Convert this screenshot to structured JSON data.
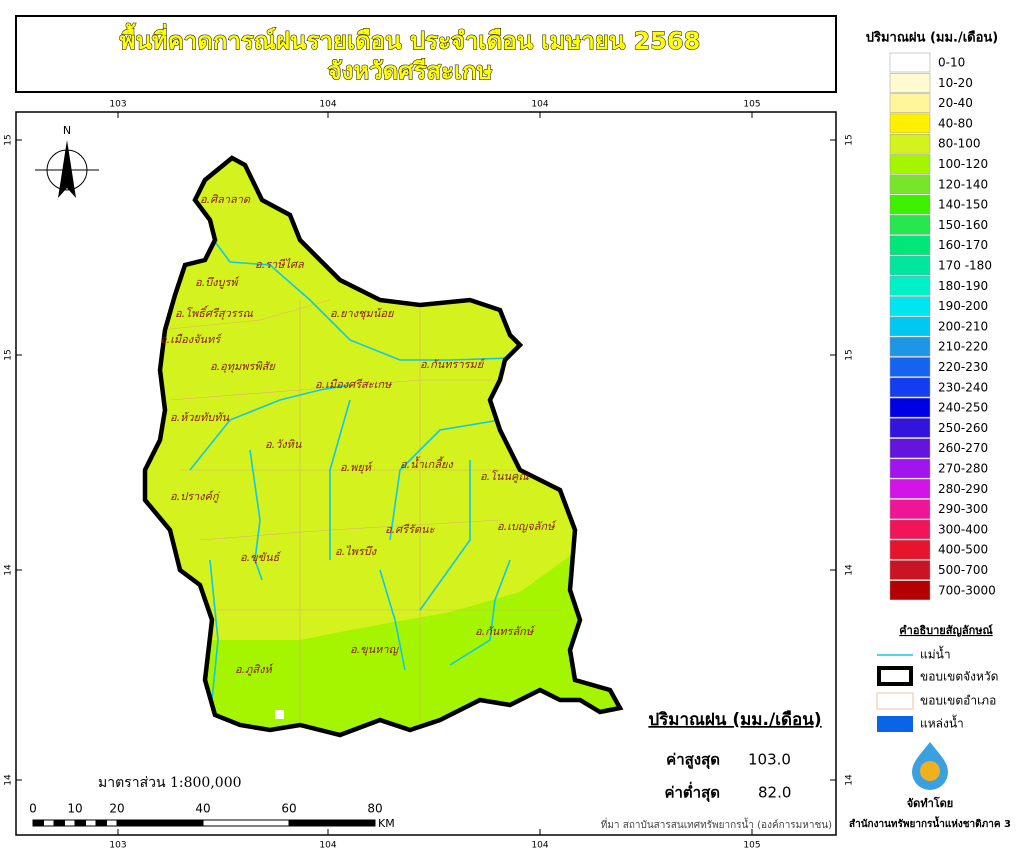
{
  "title": {
    "line1": "พื้นที่คาดการณ์ฝนรายเดือน ประจำเดือน เมษายน 2568",
    "line2": "จังหวัดศรีสะเกษ"
  },
  "coordinates": {
    "top": [
      "103",
      "104",
      "104",
      "105"
    ],
    "bottom": [
      "103",
      "104",
      "104",
      "105"
    ],
    "left": [
      "15",
      "15",
      "14",
      "14"
    ],
    "right": [
      "15",
      "15",
      "14",
      "14"
    ]
  },
  "north": "N",
  "districts": [
    "อ.ศิลาลาด",
    "อ.ราษีไศล",
    "อ.บึงบูรพ์",
    "อ.โพธิ์ศรีสุวรรณ",
    "อ.ยางชุมน้อย",
    "อ.เมืองจันทร์",
    "อ.กันทรารมย์",
    "อ.อุทุมพรพิสัย",
    "อ.เมืองศรีสะเกษ",
    "อ.ห้วยทับทัน",
    "อ.วังหิน",
    "อ.พยุห์",
    "อ.น้ำเกลี้ยง",
    "อ.โนนคูณ",
    "อ.ปรางค์กู่",
    "อ.ศรีรัตนะ",
    "อ.เบญจลักษ์",
    "อ.ขุขันธ์",
    "อ.ไพรบึง",
    "อ.กันทรลักษ์",
    "อ.ขุนหาญ",
    "อ.ภูสิงห์"
  ],
  "scale": {
    "label": "มาตราส่วน 1:800,000",
    "ticks": [
      "0",
      "10",
      "20",
      "40",
      "60",
      "80"
    ],
    "unit": "KM"
  },
  "stats": {
    "title": "ปริมาณฝน (มม./เดือน)",
    "max_label": "ค่าสูงสุด",
    "max_value": "103.0",
    "min_label": "ค่าต่ำสุด",
    "min_value": "82.0"
  },
  "source": "ที่มา  สถาบันสารสนเทศทรัพยากรน้ำ (องค์การมหาชน)",
  "legend": {
    "title": "ปริมาณฝน (มม./เดือน)",
    "classes": [
      {
        "label": "0-10",
        "color": "#ffffff"
      },
      {
        "label": "10-20",
        "color": "#fffbd0"
      },
      {
        "label": "20-40",
        "color": "#fff59a"
      },
      {
        "label": "40-80",
        "color": "#ffef00"
      },
      {
        "label": "80-100",
        "color": "#d4f21e"
      },
      {
        "label": "100-120",
        "color": "#a6f500"
      },
      {
        "label": "120-140",
        "color": "#78e628"
      },
      {
        "label": "140-150",
        "color": "#3cf000"
      },
      {
        "label": "150-160",
        "color": "#28e650"
      },
      {
        "label": "160-170",
        "color": "#00e678"
      },
      {
        "label": "170 -180",
        "color": "#00e6a0"
      },
      {
        "label": "180-190",
        "color": "#00f0c8"
      },
      {
        "label": "190-200",
        "color": "#00e6f0"
      },
      {
        "label": "200-210",
        "color": "#00c8f0"
      },
      {
        "label": "210-220",
        "color": "#1e96e6"
      },
      {
        "label": "220-230",
        "color": "#1464f0"
      },
      {
        "label": "230-240",
        "color": "#143cf0"
      },
      {
        "label": "240-250",
        "color": "#0000e6"
      },
      {
        "label": "250-260",
        "color": "#3214dc"
      },
      {
        "label": "260-270",
        "color": "#6414dc"
      },
      {
        "label": "270-280",
        "color": "#a014f0"
      },
      {
        "label": "280-290",
        "color": "#d214e6"
      },
      {
        "label": "290-300",
        "color": "#f01496"
      },
      {
        "label": "300-400",
        "color": "#f0145a"
      },
      {
        "label": "400-500",
        "color": "#e6142d"
      },
      {
        "label": "500-700",
        "color": "#c81423"
      },
      {
        "label": "700-3000",
        "color": "#b40000"
      }
    ]
  },
  "symbols": {
    "title": "คำอธิบายสัญลักษณ์",
    "river": "แม่น้ำ",
    "province": "ขอบเขตจังหวัด",
    "district": "ขอบเขตอำเภอ",
    "water": "แหล่งน้ำ"
  },
  "credit": {
    "label": "จัดทำโดย",
    "org": "สำนักงานทรัพยากรน้ำแห่งชาติภาค 3"
  }
}
